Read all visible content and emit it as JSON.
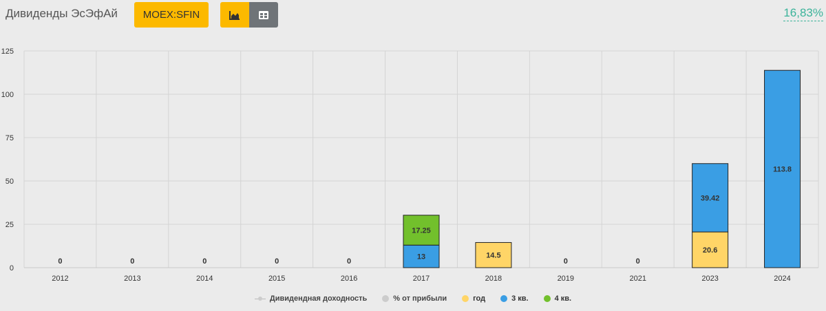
{
  "header": {
    "title": "Дивиденды ЭсЭфАй",
    "ticker": "MOEX:SFIN",
    "yield": "16,83%"
  },
  "colors": {
    "accent": "#fcb900",
    "year": "#ffd567",
    "q3": "#3a9ee4",
    "q4": "#72c02c",
    "yield_text": "#3cb39a"
  },
  "icons": {
    "chart_view": "area-chart-icon",
    "table_view": "table-icon"
  },
  "chart_data": {
    "type": "bar",
    "stacked": true,
    "categories": [
      "2012",
      "2013",
      "2014",
      "2015",
      "2016",
      "2017",
      "2018",
      "2019",
      "2021",
      "2023",
      "2024"
    ],
    "ylim": [
      0,
      125
    ],
    "yticks": [
      0,
      25,
      50,
      75,
      100,
      125
    ],
    "grid": true,
    "legend_position": "bottom",
    "series": [
      {
        "name": "год",
        "color": "#ffd567",
        "values": [
          0,
          0,
          0,
          0,
          0,
          0,
          14.5,
          0,
          0,
          20.6,
          0
        ]
      },
      {
        "name": "3 кв.",
        "color": "#3a9ee4",
        "values": [
          0,
          0,
          0,
          0,
          0,
          13,
          0,
          0,
          0,
          39.42,
          113.8
        ]
      },
      {
        "name": "4 кв.",
        "color": "#72c02c",
        "values": [
          0,
          0,
          0,
          0,
          0,
          17.25,
          0,
          0,
          0,
          0,
          0
        ]
      }
    ],
    "legend": [
      {
        "name": "Дивидендная доходность",
        "kind": "line",
        "color": "#cccccc"
      },
      {
        "name": "% от прибыли",
        "kind": "dot",
        "color": "#cccccc"
      },
      {
        "name": "год",
        "kind": "dot",
        "color": "#ffd567"
      },
      {
        "name": "3 кв.",
        "kind": "dot",
        "color": "#3a9ee4"
      },
      {
        "name": "4 кв.",
        "kind": "dot",
        "color": "#72c02c"
      }
    ]
  }
}
